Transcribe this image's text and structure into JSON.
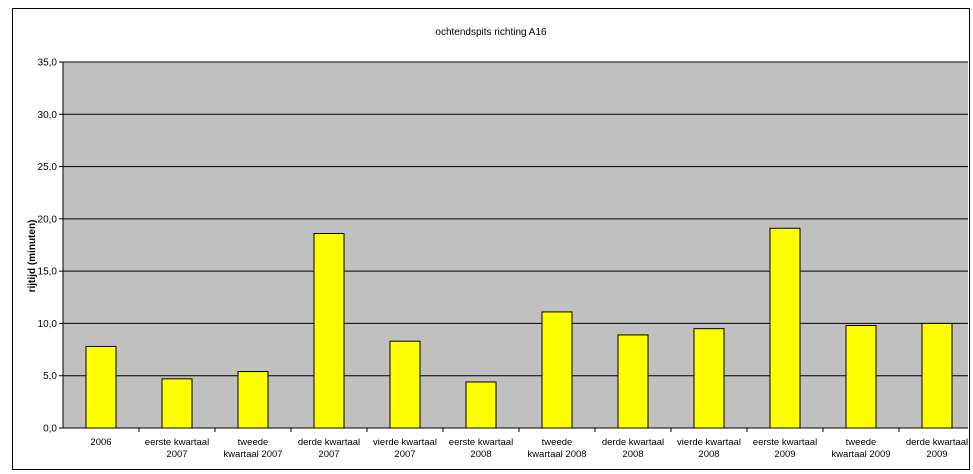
{
  "chart_data": {
    "type": "bar",
    "title": "ochtendspits richting A16",
    "xlabel": "",
    "ylabel": "rijtijd (minuten)",
    "ylim": [
      0,
      35
    ],
    "yticks": [
      "0,0",
      "5,0",
      "10,0",
      "15,0",
      "20,0",
      "25,0",
      "30,0",
      "35,0"
    ],
    "grid": true,
    "legend": "none",
    "categories": [
      [
        "2006"
      ],
      [
        "eerste kwartaal",
        "2007"
      ],
      [
        "tweede",
        "kwartaal 2007"
      ],
      [
        "derde kwartaal",
        "2007"
      ],
      [
        "vierde kwartaal",
        "2007"
      ],
      [
        "eerste kwartaal",
        "2008"
      ],
      [
        "tweede",
        "kwartaal 2008"
      ],
      [
        "derde kwartaal",
        "2008"
      ],
      [
        "vierde kwartaal",
        "2008"
      ],
      [
        "eerste kwartaal",
        "2009"
      ],
      [
        "tweede",
        "kwartaal 2009"
      ],
      [
        "derde kwartaal",
        "2009"
      ]
    ],
    "values": [
      7.8,
      4.7,
      5.4,
      18.6,
      8.3,
      4.4,
      11.1,
      8.9,
      9.5,
      19.1,
      9.8,
      10.0
    ],
    "colors": {
      "bar": "#ffff00",
      "bar_stroke": "#000000",
      "plot_background": "#c0c0c0",
      "gridline": "#000000"
    }
  }
}
